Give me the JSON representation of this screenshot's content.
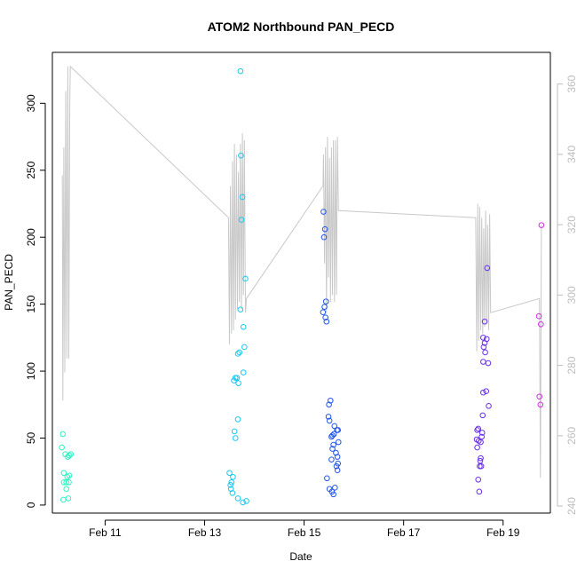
{
  "chart_data": {
    "type": "scatter",
    "title": "ATOM2 Northbound PAN_PECD",
    "xlabel": "Date",
    "ylabel": "PAN_PECD",
    "x_ticks": [
      "Feb 11",
      "Feb 13",
      "Feb 15",
      "Feb 17",
      "Feb 19"
    ],
    "y_ticks": [
      0,
      50,
      100,
      150,
      200,
      250,
      300
    ],
    "y2_ticks": [
      240,
      260,
      280,
      300,
      320,
      340,
      360
    ],
    "xlim": [
      9.94,
      19.95
    ],
    "ylim": [
      -6,
      338
    ],
    "y2lim": [
      238,
      369
    ],
    "grid": false,
    "colors": {
      "axis": "#000000",
      "secondary_axis": "#bdbdbd",
      "line": "#c8c8c8"
    },
    "points": [
      {
        "x": 10.15,
        "y": 53,
        "color": "#2ef2c2"
      },
      {
        "x": 10.13,
        "y": 43,
        "color": "#2ef2c2"
      },
      {
        "x": 10.2,
        "y": 38,
        "color": "#2ef2c2"
      },
      {
        "x": 10.25,
        "y": 36,
        "color": "#2ef2c2"
      },
      {
        "x": 10.28,
        "y": 37,
        "color": "#2ef2c2"
      },
      {
        "x": 10.31,
        "y": 38,
        "color": "#2ef2c2"
      },
      {
        "x": 10.17,
        "y": 24,
        "color": "#2ef2c2"
      },
      {
        "x": 10.28,
        "y": 22,
        "color": "#2ef2c2"
      },
      {
        "x": 10.24,
        "y": 21,
        "color": "#2ef2c2"
      },
      {
        "x": 10.17,
        "y": 17,
        "color": "#2ef2c2"
      },
      {
        "x": 10.22,
        "y": 17,
        "color": "#2ef2c2"
      },
      {
        "x": 10.27,
        "y": 17,
        "color": "#2ef2c2"
      },
      {
        "x": 10.22,
        "y": 12,
        "color": "#2ef2c2"
      },
      {
        "x": 10.16,
        "y": 4,
        "color": "#2ef2c2"
      },
      {
        "x": 10.26,
        "y": 5,
        "color": "#2ef2c2"
      },
      {
        "x": 13.72,
        "y": 324,
        "color": "#1cc8f0"
      },
      {
        "x": 13.73,
        "y": 261,
        "color": "#1cc8f0"
      },
      {
        "x": 13.76,
        "y": 230,
        "color": "#1cc8f0"
      },
      {
        "x": 13.74,
        "y": 213,
        "color": "#1cc8f0"
      },
      {
        "x": 13.82,
        "y": 169,
        "color": "#1cc8f0"
      },
      {
        "x": 13.72,
        "y": 146,
        "color": "#1cc8f0"
      },
      {
        "x": 13.78,
        "y": 133,
        "color": "#1cc8f0"
      },
      {
        "x": 13.8,
        "y": 118,
        "color": "#1cc8f0"
      },
      {
        "x": 13.7,
        "y": 114,
        "color": "#1cc8f0"
      },
      {
        "x": 13.67,
        "y": 113,
        "color": "#1cc8f0"
      },
      {
        "x": 13.78,
        "y": 99,
        "color": "#1cc8f0"
      },
      {
        "x": 13.62,
        "y": 95,
        "color": "#1cc8f0"
      },
      {
        "x": 13.65,
        "y": 95,
        "color": "#1cc8f0"
      },
      {
        "x": 13.59,
        "y": 93,
        "color": "#1cc8f0"
      },
      {
        "x": 13.68,
        "y": 91,
        "color": "#1cc8f0"
      },
      {
        "x": 13.67,
        "y": 64,
        "color": "#1cc8f0"
      },
      {
        "x": 13.6,
        "y": 55,
        "color": "#1cc8f0"
      },
      {
        "x": 13.62,
        "y": 50,
        "color": "#1cc8f0"
      },
      {
        "x": 13.5,
        "y": 24,
        "color": "#1cc8f0"
      },
      {
        "x": 13.57,
        "y": 21,
        "color": "#1cc8f0"
      },
      {
        "x": 13.54,
        "y": 17,
        "color": "#1cc8f0"
      },
      {
        "x": 13.52,
        "y": 15,
        "color": "#1cc8f0"
      },
      {
        "x": 13.53,
        "y": 12,
        "color": "#1cc8f0"
      },
      {
        "x": 13.56,
        "y": 9,
        "color": "#1cc8f0"
      },
      {
        "x": 13.67,
        "y": 5,
        "color": "#1cc8f0"
      },
      {
        "x": 13.77,
        "y": 2,
        "color": "#1cc8f0"
      },
      {
        "x": 13.84,
        "y": 3,
        "color": "#1cc8f0"
      },
      {
        "x": 15.39,
        "y": 219,
        "color": "#2255ea"
      },
      {
        "x": 15.42,
        "y": 206,
        "color": "#2255ea"
      },
      {
        "x": 15.4,
        "y": 200,
        "color": "#2255ea"
      },
      {
        "x": 15.44,
        "y": 152,
        "color": "#2255ea"
      },
      {
        "x": 15.41,
        "y": 148,
        "color": "#2255ea"
      },
      {
        "x": 15.38,
        "y": 144,
        "color": "#2255ea"
      },
      {
        "x": 15.43,
        "y": 140,
        "color": "#2255ea"
      },
      {
        "x": 15.45,
        "y": 137,
        "color": "#2255ea"
      },
      {
        "x": 15.53,
        "y": 78,
        "color": "#2255ea"
      },
      {
        "x": 15.5,
        "y": 75,
        "color": "#2255ea"
      },
      {
        "x": 15.49,
        "y": 66,
        "color": "#2255ea"
      },
      {
        "x": 15.51,
        "y": 63,
        "color": "#2255ea"
      },
      {
        "x": 15.61,
        "y": 59,
        "color": "#2255ea"
      },
      {
        "x": 15.66,
        "y": 56,
        "color": "#2255ea"
      },
      {
        "x": 15.68,
        "y": 56,
        "color": "#2255ea"
      },
      {
        "x": 15.6,
        "y": 53,
        "color": "#2255ea"
      },
      {
        "x": 15.57,
        "y": 52,
        "color": "#2255ea"
      },
      {
        "x": 15.55,
        "y": 51,
        "color": "#2255ea"
      },
      {
        "x": 15.69,
        "y": 47,
        "color": "#2255ea"
      },
      {
        "x": 15.59,
        "y": 45,
        "color": "#2255ea"
      },
      {
        "x": 15.57,
        "y": 42,
        "color": "#2255ea"
      },
      {
        "x": 15.64,
        "y": 39,
        "color": "#2255ea"
      },
      {
        "x": 15.67,
        "y": 36,
        "color": "#2255ea"
      },
      {
        "x": 15.55,
        "y": 34,
        "color": "#2255ea"
      },
      {
        "x": 15.68,
        "y": 31,
        "color": "#2255ea"
      },
      {
        "x": 15.65,
        "y": 29,
        "color": "#2255ea"
      },
      {
        "x": 15.67,
        "y": 26,
        "color": "#2255ea"
      },
      {
        "x": 15.46,
        "y": 20,
        "color": "#2255ea"
      },
      {
        "x": 15.62,
        "y": 13,
        "color": "#2255ea"
      },
      {
        "x": 15.51,
        "y": 12,
        "color": "#2255ea"
      },
      {
        "x": 15.56,
        "y": 10,
        "color": "#2255ea"
      },
      {
        "x": 15.59,
        "y": 8,
        "color": "#2255ea"
      },
      {
        "x": 18.68,
        "y": 177,
        "color": "#6a2ee8"
      },
      {
        "x": 18.63,
        "y": 137,
        "color": "#6a2ee8"
      },
      {
        "x": 18.6,
        "y": 125,
        "color": "#6a2ee8"
      },
      {
        "x": 18.67,
        "y": 124,
        "color": "#6a2ee8"
      },
      {
        "x": 18.63,
        "y": 121,
        "color": "#6a2ee8"
      },
      {
        "x": 18.61,
        "y": 118,
        "color": "#6a2ee8"
      },
      {
        "x": 18.64,
        "y": 114,
        "color": "#6a2ee8"
      },
      {
        "x": 18.6,
        "y": 107,
        "color": "#6a2ee8"
      },
      {
        "x": 18.7,
        "y": 106,
        "color": "#6a2ee8"
      },
      {
        "x": 18.66,
        "y": 85,
        "color": "#6a2ee8"
      },
      {
        "x": 18.6,
        "y": 84,
        "color": "#6a2ee8"
      },
      {
        "x": 18.71,
        "y": 74,
        "color": "#6a2ee8"
      },
      {
        "x": 18.59,
        "y": 67,
        "color": "#6a2ee8"
      },
      {
        "x": 18.5,
        "y": 57,
        "color": "#6a2ee8"
      },
      {
        "x": 18.48,
        "y": 56,
        "color": "#6a2ee8"
      },
      {
        "x": 18.58,
        "y": 54,
        "color": "#6a2ee8"
      },
      {
        "x": 18.57,
        "y": 51,
        "color": "#6a2ee8"
      },
      {
        "x": 18.47,
        "y": 49,
        "color": "#6a2ee8"
      },
      {
        "x": 18.51,
        "y": 48,
        "color": "#6a2ee8"
      },
      {
        "x": 18.55,
        "y": 47,
        "color": "#6a2ee8"
      },
      {
        "x": 18.48,
        "y": 43,
        "color": "#6a2ee8"
      },
      {
        "x": 18.55,
        "y": 35,
        "color": "#6a2ee8"
      },
      {
        "x": 18.54,
        "y": 33,
        "color": "#6a2ee8"
      },
      {
        "x": 18.53,
        "y": 29,
        "color": "#6a2ee8"
      },
      {
        "x": 18.56,
        "y": 29,
        "color": "#6a2ee8"
      },
      {
        "x": 18.5,
        "y": 19,
        "color": "#6a2ee8"
      },
      {
        "x": 18.52,
        "y": 10,
        "color": "#6a2ee8"
      },
      {
        "x": 19.77,
        "y": 209,
        "color": "#d12ee0"
      },
      {
        "x": 19.72,
        "y": 141,
        "color": "#d12ee0"
      },
      {
        "x": 19.76,
        "y": 135,
        "color": "#d12ee0"
      },
      {
        "x": 19.73,
        "y": 81,
        "color": "#d12ee0"
      },
      {
        "x": 19.75,
        "y": 75,
        "color": "#d12ee0"
      }
    ],
    "line": {
      "axis": "right",
      "x": [
        10.14,
        10.15,
        10.17,
        10.19,
        10.21,
        10.23,
        10.25,
        10.27,
        10.29,
        10.3,
        13.48,
        13.5,
        13.52,
        13.54,
        13.56,
        13.58,
        13.6,
        13.62,
        13.64,
        13.66,
        13.68,
        13.7,
        13.72,
        13.74,
        13.76,
        13.78,
        13.8,
        13.82,
        13.84,
        15.38,
        15.39,
        15.41,
        15.43,
        15.45,
        15.47,
        15.49,
        15.51,
        15.53,
        15.55,
        15.57,
        15.59,
        15.61,
        15.63,
        15.65,
        15.67,
        15.69,
        18.45,
        18.47,
        18.49,
        18.51,
        18.53,
        18.55,
        18.57,
        18.59,
        18.61,
        18.63,
        18.65,
        18.67,
        18.69,
        18.71,
        18.73,
        18.75,
        19.73,
        19.75,
        19.77
      ],
      "y": [
        334,
        270,
        342,
        278,
        358,
        282,
        365,
        282,
        354,
        365,
        322,
        286,
        331,
        289,
        338,
        290,
        343,
        293,
        340,
        296,
        335,
        298,
        343,
        296,
        346,
        300,
        344,
        295,
        299,
        331,
        340,
        309,
        342,
        295,
        345,
        305,
        339,
        298,
        342,
        300,
        344,
        298,
        344,
        300,
        345,
        324,
        322,
        284,
        326,
        287,
        325,
        290,
        322,
        289,
        319,
        291,
        324,
        292,
        320,
        290,
        323,
        295,
        299,
        248,
        320
      ]
    }
  }
}
